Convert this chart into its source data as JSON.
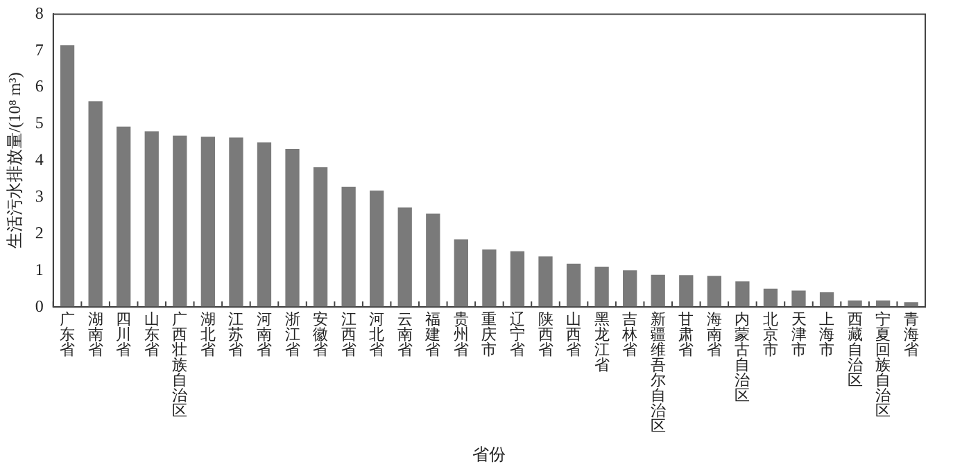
{
  "chart_data": {
    "type": "bar",
    "xlabel": "省份",
    "ylabel": "生活污水排放量/(10⁸ m³)",
    "categories": [
      "广东省",
      "湖南省",
      "四川省",
      "山东省",
      "广西壮族自治区",
      "湖北省",
      "江苏省",
      "河南省",
      "浙江省",
      "安徽省",
      "江西省",
      "河北省",
      "云南省",
      "福建省",
      "贵州省",
      "重庆市",
      "辽宁省",
      "陕西省",
      "山西省",
      "黑龙江省",
      "吉林省",
      "新疆维吾尔自治区",
      "甘肃省",
      "海南省",
      "内蒙古自治区",
      "北京市",
      "天津市",
      "上海市",
      "西藏自治区",
      "宁夏回族自治区",
      "青海省"
    ],
    "values": [
      7.15,
      5.62,
      4.93,
      4.8,
      4.68,
      4.65,
      4.63,
      4.5,
      4.32,
      3.82,
      3.28,
      3.18,
      2.72,
      2.55,
      1.85,
      1.57,
      1.52,
      1.38,
      1.18,
      1.1,
      1.0,
      0.88,
      0.87,
      0.85,
      0.7,
      0.5,
      0.45,
      0.4,
      0.18,
      0.18,
      0.13
    ],
    "color": "#7a7a7a",
    "ylim": [
      0,
      8
    ],
    "yticks": [
      0,
      1,
      2,
      3,
      4,
      5,
      6,
      7,
      8
    ],
    "grid": false,
    "legend": false
  }
}
